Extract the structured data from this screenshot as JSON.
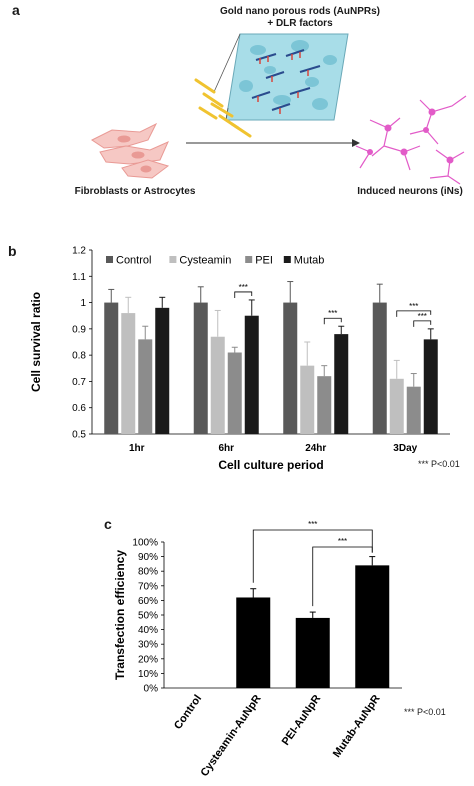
{
  "panel_a": {
    "letter": "a",
    "rods_label_line1": "Gold nano porous rods (AuNPRs)",
    "rods_label_line2": "+ DLR factors",
    "source_label": "Fibroblasts or Astrocytes",
    "target_label": "Induced neurons (iNs)",
    "colors": {
      "cell_fill": "#f6c8c4",
      "cell_stroke": "#e99a95",
      "rod": "#f0c330",
      "neuron": "#e25bc8",
      "inset_bg": "#a8dde8"
    }
  },
  "panel_b": {
    "letter": "b",
    "note_stars": "***",
    "note_text": "P<0.01",
    "chart_data": {
      "type": "bar",
      "title": "",
      "xlabel": "Cell culture period",
      "ylabel": "Cell survival ratio",
      "ylim": [
        0.5,
        1.2
      ],
      "yticks": [
        "0.5",
        "0.6",
        "0.7",
        "0.8",
        "0.9",
        "1",
        "1.1",
        "1.2"
      ],
      "categories": [
        "1hr",
        "6hr",
        "24hr",
        "3Day"
      ],
      "series": [
        {
          "name": "Control",
          "color": "#595959",
          "values": [
            1.0,
            1.0,
            1.0,
            1.0
          ],
          "errors": [
            0.05,
            0.06,
            0.08,
            0.07
          ]
        },
        {
          "name": "Cysteamin",
          "color": "#bfbfbf",
          "values": [
            0.96,
            0.87,
            0.76,
            0.71
          ],
          "errors": [
            0.06,
            0.1,
            0.09,
            0.07
          ]
        },
        {
          "name": "PEI",
          "color": "#8c8c8c",
          "values": [
            0.86,
            0.81,
            0.72,
            0.68
          ],
          "errors": [
            0.05,
            0.02,
            0.04,
            0.05
          ]
        },
        {
          "name": "Mutab",
          "color": "#1a1a1a",
          "values": [
            0.98,
            0.95,
            0.88,
            0.86
          ],
          "errors": [
            0.04,
            0.06,
            0.03,
            0.04
          ]
        }
      ],
      "significance": [
        {
          "category": "6hr",
          "from": "PEI",
          "to": "Mutab",
          "label": "***"
        },
        {
          "category": "24hr",
          "from": "PEI",
          "to": "Mutab",
          "label": "***"
        },
        {
          "category": "3Day",
          "from": "Cysteamin",
          "to": "Mutab",
          "label": "***"
        },
        {
          "category": "3Day",
          "from": "PEI",
          "to": "Mutab",
          "label": "***"
        }
      ],
      "legend": "top",
      "grid": false
    }
  },
  "panel_c": {
    "letter": "c",
    "note_stars": "***",
    "note_text": "P<0.01",
    "chart_data": {
      "type": "bar",
      "title": "",
      "xlabel": "",
      "ylabel": "Transfection efficiency",
      "ylim": [
        0,
        100
      ],
      "yticks": [
        "0%",
        "10%",
        "20%",
        "30%",
        "40%",
        "50%",
        "60%",
        "70%",
        "80%",
        "90%",
        "100%"
      ],
      "categories": [
        "Control",
        "Cysteamin-AuNpR",
        "PEI-AuNpR",
        "Mutab-AuNpR"
      ],
      "values": [
        0,
        62,
        48,
        84
      ],
      "errors": [
        0,
        6,
        4,
        6
      ],
      "color": "#000000",
      "significance": [
        {
          "from": "Cysteamin-AuNpR",
          "to": "Mutab-AuNpR",
          "label": "***"
        },
        {
          "from": "PEI-AuNpR",
          "to": "Mutab-AuNpR",
          "label": "***"
        }
      ],
      "grid": false
    }
  }
}
